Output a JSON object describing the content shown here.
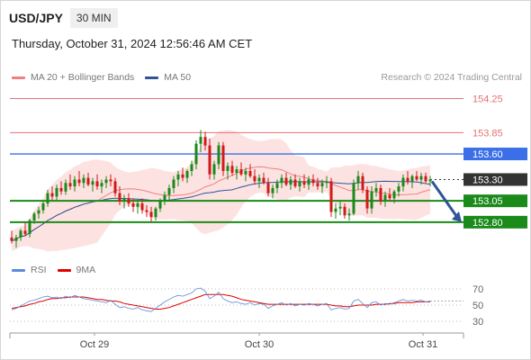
{
  "header": {
    "symbol": "USD/JPY",
    "timeframe": "30 MIN",
    "datetime": "Thursday, October 31, 2024 12:56:46 AM CET",
    "source": "Research © 2024 Trading Central"
  },
  "legend": [
    {
      "label": "MA 20 + Bollinger Bands",
      "color": "#f08080"
    },
    {
      "label": "MA 50",
      "color": "#2f5597"
    }
  ],
  "rsi_legend": [
    {
      "label": "RSI",
      "color": "#5b8bd9"
    },
    {
      "label": "9MA",
      "color": "#e00000"
    }
  ],
  "chart_data": [
    {
      "type": "candlestick",
      "title": "USD/JPY 30 MIN",
      "x_tick_labels": [
        "Oct 29",
        "Oct 30",
        "Oct 31"
      ],
      "ylim": [
        152.45,
        154.35
      ],
      "levels": [
        {
          "value": 154.25,
          "label": "154.25",
          "kind": "resistance",
          "color": "#e57373"
        },
        {
          "value": 153.85,
          "label": "153.85",
          "kind": "resistance",
          "color": "#e57373"
        },
        {
          "value": 153.6,
          "label": "153.60",
          "kind": "pivot",
          "color": "#3a6fe8"
        },
        {
          "value": 153.3,
          "label": "153.30",
          "kind": "last-price",
          "color": "#333333"
        },
        {
          "value": 153.05,
          "label": "153.05",
          "kind": "support",
          "color": "#1a8a1a"
        },
        {
          "value": 152.8,
          "label": "152.80",
          "kind": "support",
          "color": "#1a8a1a"
        }
      ],
      "forecast_arrow": {
        "from": 153.3,
        "to": 152.8,
        "direction": "down",
        "color": "#2f5597"
      },
      "colors": {
        "up": "#1a8a1a",
        "down": "#d11a1a",
        "bands": "#fde2e2",
        "ma20": "#f08080",
        "ma50": "#2f5597"
      },
      "candles": [
        [
          152.62,
          152.7,
          152.55,
          152.58
        ],
        [
          152.58,
          152.65,
          152.5,
          152.62
        ],
        [
          152.62,
          152.72,
          152.58,
          152.7
        ],
        [
          152.7,
          152.8,
          152.64,
          152.66
        ],
        [
          152.66,
          152.84,
          152.62,
          152.82
        ],
        [
          152.82,
          152.92,
          152.78,
          152.9
        ],
        [
          152.9,
          152.98,
          152.84,
          152.94
        ],
        [
          152.94,
          153.05,
          152.9,
          153.02
        ],
        [
          153.02,
          153.18,
          152.98,
          153.14
        ],
        [
          153.14,
          153.22,
          153.06,
          153.1
        ],
        [
          153.1,
          153.24,
          153.06,
          153.2
        ],
        [
          153.2,
          153.28,
          153.12,
          153.16
        ],
        [
          153.16,
          153.3,
          153.12,
          153.26
        ],
        [
          153.26,
          153.36,
          153.18,
          153.22
        ],
        [
          153.22,
          153.34,
          153.16,
          153.3
        ],
        [
          153.3,
          153.4,
          153.22,
          153.26
        ],
        [
          153.26,
          153.36,
          153.2,
          153.32
        ],
        [
          153.32,
          153.38,
          153.22,
          153.24
        ],
        [
          153.24,
          153.32,
          153.16,
          153.28
        ],
        [
          153.28,
          153.36,
          153.18,
          153.22
        ],
        [
          153.22,
          153.3,
          153.14,
          153.26
        ],
        [
          153.26,
          153.34,
          153.2,
          153.3
        ],
        [
          153.3,
          153.36,
          153.22,
          153.28
        ],
        [
          153.28,
          153.32,
          153.1,
          153.14
        ],
        [
          153.14,
          153.22,
          153.0,
          153.04
        ],
        [
          153.04,
          153.12,
          152.96,
          153.08
        ],
        [
          153.08,
          153.14,
          152.98,
          153.02
        ],
        [
          153.02,
          153.08,
          152.92,
          152.98
        ],
        [
          152.98,
          153.06,
          152.9,
          153.02
        ],
        [
          153.02,
          153.08,
          152.9,
          152.94
        ],
        [
          152.94,
          153.0,
          152.86,
          152.92
        ],
        [
          152.92,
          152.98,
          152.8,
          152.86
        ],
        [
          152.86,
          152.98,
          152.82,
          152.96
        ],
        [
          152.96,
          153.08,
          152.92,
          153.06
        ],
        [
          153.06,
          153.16,
          153.0,
          153.12
        ],
        [
          153.12,
          153.24,
          153.06,
          153.2
        ],
        [
          153.2,
          153.34,
          153.14,
          153.3
        ],
        [
          153.3,
          153.4,
          153.22,
          153.36
        ],
        [
          153.36,
          153.44,
          153.28,
          153.32
        ],
        [
          153.32,
          153.42,
          153.26,
          153.4
        ],
        [
          153.4,
          153.52,
          153.34,
          153.48
        ],
        [
          153.48,
          153.76,
          153.42,
          153.72
        ],
        [
          153.72,
          153.88,
          153.62,
          153.8
        ],
        [
          153.8,
          153.86,
          153.64,
          153.7
        ],
        [
          153.7,
          153.78,
          153.3,
          153.36
        ],
        [
          153.36,
          153.52,
          153.3,
          153.48
        ],
        [
          153.48,
          153.74,
          153.42,
          153.7
        ],
        [
          153.7,
          153.74,
          153.34,
          153.4
        ],
        [
          153.4,
          153.5,
          153.3,
          153.46
        ],
        [
          153.46,
          153.52,
          153.34,
          153.38
        ],
        [
          153.38,
          153.46,
          153.3,
          153.42
        ],
        [
          153.42,
          153.5,
          153.34,
          153.36
        ],
        [
          153.36,
          153.44,
          153.28,
          153.4
        ],
        [
          153.4,
          153.48,
          153.32,
          153.34
        ],
        [
          153.34,
          153.42,
          153.24,
          153.28
        ],
        [
          153.28,
          153.36,
          153.2,
          153.32
        ],
        [
          153.32,
          153.38,
          153.24,
          153.26
        ],
        [
          153.26,
          153.32,
          153.1,
          153.14
        ],
        [
          153.14,
          153.24,
          153.08,
          153.2
        ],
        [
          153.2,
          153.3,
          153.14,
          153.26
        ],
        [
          153.26,
          153.36,
          153.2,
          153.32
        ],
        [
          153.32,
          153.38,
          153.22,
          153.24
        ],
        [
          153.24,
          153.34,
          153.18,
          153.3
        ],
        [
          153.3,
          153.36,
          153.2,
          153.22
        ],
        [
          153.22,
          153.32,
          153.16,
          153.28
        ],
        [
          153.28,
          153.36,
          153.2,
          153.24
        ],
        [
          153.24,
          153.34,
          153.18,
          153.3
        ],
        [
          153.3,
          153.36,
          153.22,
          153.26
        ],
        [
          153.26,
          153.32,
          153.18,
          153.22
        ],
        [
          153.22,
          153.3,
          153.14,
          153.26
        ],
        [
          153.26,
          153.34,
          153.2,
          153.28
        ],
        [
          153.28,
          153.32,
          152.86,
          152.92
        ],
        [
          152.92,
          153.02,
          152.84,
          152.96
        ],
        [
          152.96,
          153.04,
          152.88,
          152.98
        ],
        [
          152.98,
          153.02,
          152.84,
          152.88
        ],
        [
          152.88,
          152.96,
          152.82,
          152.9
        ],
        [
          152.9,
          153.3,
          152.88,
          153.26
        ],
        [
          153.26,
          153.4,
          153.18,
          153.34
        ],
        [
          153.34,
          153.38,
          153.14,
          153.18
        ],
        [
          153.18,
          153.22,
          152.9,
          152.96
        ],
        [
          152.96,
          153.22,
          152.9,
          153.16
        ],
        [
          153.16,
          153.26,
          153.1,
          153.2
        ],
        [
          153.2,
          153.24,
          153.0,
          153.04
        ],
        [
          153.04,
          153.16,
          152.98,
          153.12
        ],
        [
          153.12,
          153.2,
          153.04,
          153.08
        ],
        [
          153.08,
          153.18,
          153.02,
          153.16
        ],
        [
          153.16,
          153.26,
          153.1,
          153.22
        ],
        [
          153.22,
          153.36,
          153.16,
          153.32
        ],
        [
          153.32,
          153.4,
          153.24,
          153.28
        ],
        [
          153.28,
          153.36,
          153.2,
          153.34
        ],
        [
          153.34,
          153.4,
          153.28,
          153.3
        ],
        [
          153.3,
          153.38,
          153.24,
          153.34
        ],
        [
          153.34,
          153.38,
          153.26,
          153.28
        ],
        [
          153.28,
          153.34,
          153.22,
          153.3
        ]
      ]
    },
    {
      "type": "line",
      "title": "RSI",
      "ylim": [
        20,
        80
      ],
      "y_ticks": [
        70,
        50,
        30
      ],
      "series_colors": {
        "RSI": "#5b8bd9",
        "9MA": "#e00000"
      },
      "series": [
        {
          "name": "RSI",
          "values": [
            44,
            46,
            49,
            52,
            55,
            56,
            58,
            60,
            61,
            59,
            60,
            58,
            61,
            59,
            62,
            60,
            58,
            57,
            56,
            55,
            54,
            53,
            56,
            51,
            47,
            48,
            46,
            45,
            47,
            44,
            43,
            42,
            46,
            50,
            54,
            57,
            60,
            62,
            61,
            63,
            65,
            70,
            71,
            67,
            58,
            61,
            66,
            58,
            55,
            53,
            54,
            52,
            51,
            53,
            50,
            52,
            51,
            46,
            49,
            51,
            53,
            50,
            52,
            49,
            51,
            50,
            52,
            51,
            49,
            51,
            52,
            44,
            46,
            47,
            45,
            46,
            55,
            57,
            52,
            47,
            53,
            54,
            50,
            52,
            51,
            53,
            55,
            57,
            55,
            56,
            55,
            56,
            54,
            55
          ]
        },
        {
          "name": "9MA",
          "values": [
            46,
            47,
            48,
            49,
            51,
            52,
            54,
            55,
            57,
            58,
            58,
            59,
            59,
            60,
            60,
            60,
            60,
            59,
            58,
            57,
            57,
            56,
            55,
            55,
            54,
            52,
            51,
            50,
            49,
            48,
            47,
            46,
            45,
            45,
            46,
            47,
            49,
            51,
            53,
            55,
            57,
            59,
            61,
            63,
            63,
            63,
            63,
            63,
            62,
            61,
            59,
            57,
            56,
            55,
            54,
            53,
            52,
            51,
            51,
            51,
            51,
            51,
            51,
            51,
            51,
            51,
            51,
            51,
            51,
            51,
            51,
            50,
            49,
            49,
            48,
            48,
            49,
            50,
            50,
            50,
            50,
            51,
            51,
            51,
            52,
            52,
            53,
            53,
            53,
            53,
            54,
            54,
            54,
            54
          ]
        }
      ]
    }
  ]
}
